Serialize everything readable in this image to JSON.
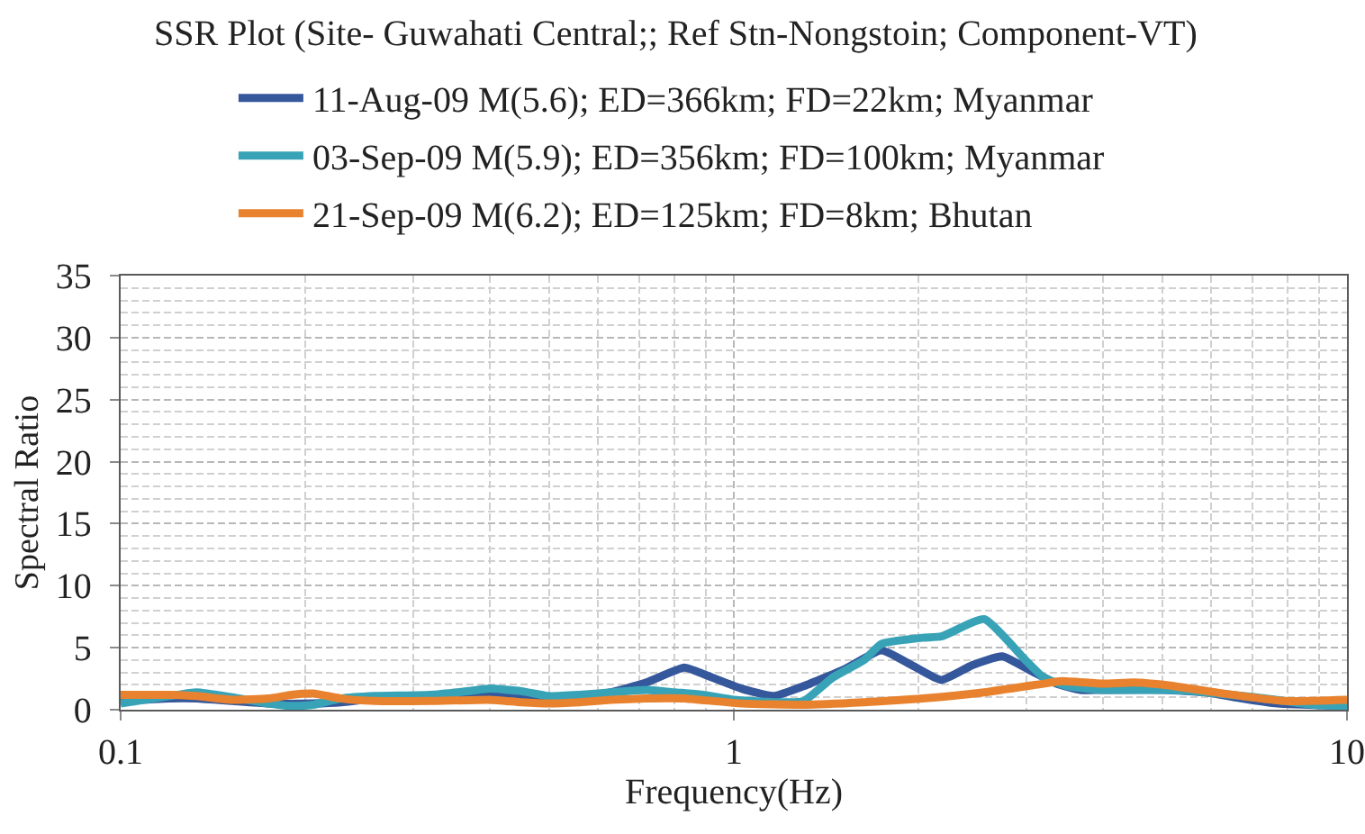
{
  "chart_data": {
    "type": "line",
    "title": "SSR Plot (Site- Guwahati Central;; Ref Stn-Nongstoin; Component-VT)",
    "xlabel": "Frequency(Hz)",
    "ylabel": "Spectral Ratio",
    "log": "x",
    "xlim": [
      0.1,
      10
    ],
    "xticks": [
      0.1,
      1,
      10
    ],
    "ylim": [
      0,
      35
    ],
    "yticks": [
      0,
      5,
      10,
      15,
      20,
      25,
      30,
      35
    ],
    "grid": true,
    "legend": "top",
    "marker": "none",
    "line_style": "solid",
    "series": [
      {
        "name": "11-Aug-09 M(5.6); ED=366km; FD=22km; Myanmar",
        "color": "#35579b",
        "x": [
          0.1,
          0.12,
          0.133,
          0.152,
          0.174,
          0.206,
          0.229,
          0.26,
          0.32,
          0.4,
          0.45,
          0.5,
          0.56,
          0.63,
          0.72,
          0.83,
          0.9,
          1.03,
          1.16,
          1.3,
          1.52,
          1.74,
          1.95,
          2.18,
          2.45,
          2.74,
          3.06,
          3.36,
          3.67,
          4.0,
          5.05,
          5.9,
          6.75,
          7.7,
          10
        ],
        "values": [
          0.7,
          0.9,
          0.9,
          0.7,
          0.5,
          0.5,
          0.6,
          0.9,
          1.0,
          1.2,
          1.0,
          0.9,
          1.0,
          1.4,
          2.2,
          3.4,
          2.8,
          1.7,
          1.1,
          1.9,
          3.3,
          4.8,
          3.6,
          2.4,
          3.6,
          4.3,
          3.1,
          2.1,
          1.6,
          1.6,
          1.6,
          1.4,
          0.9,
          0.5,
          0.3
        ]
      },
      {
        "name": "03-Sep-09 M(5.9); ED=356km; FD=100km; Myanmar",
        "color": "#38a3b7",
        "x": [
          0.1,
          0.12,
          0.133,
          0.152,
          0.174,
          0.19,
          0.206,
          0.229,
          0.26,
          0.32,
          0.37,
          0.4,
          0.45,
          0.5,
          0.56,
          0.63,
          0.72,
          0.8,
          0.89,
          1.0,
          1.16,
          1.3,
          1.45,
          1.63,
          1.74,
          2.03,
          2.18,
          2.56,
          2.99,
          3.2,
          3.5,
          4.0,
          5.05,
          5.6,
          7.1,
          8.85,
          10
        ],
        "values": [
          0.5,
          1.1,
          1.4,
          1.0,
          0.5,
          0.3,
          0.4,
          0.9,
          1.1,
          1.2,
          1.5,
          1.7,
          1.5,
          1.1,
          1.2,
          1.4,
          1.6,
          1.4,
          1.2,
          0.8,
          0.6,
          0.7,
          2.6,
          4.0,
          5.3,
          5.8,
          5.9,
          7.3,
          4.0,
          2.6,
          1.9,
          1.6,
          1.6,
          1.5,
          1.0,
          0.4,
          0.3
        ]
      },
      {
        "name": "21-Sep-09 M(6.2); ED=125km; FD=8km; Bhutan",
        "color": "#e8822e",
        "x": [
          0.1,
          0.12,
          0.133,
          0.152,
          0.174,
          0.19,
          0.206,
          0.229,
          0.26,
          0.32,
          0.4,
          0.45,
          0.5,
          0.56,
          0.63,
          0.72,
          0.83,
          1.03,
          1.3,
          1.63,
          2.03,
          2.56,
          3.2,
          3.42,
          4.0,
          4.49,
          5.05,
          6.3,
          7.9,
          10
        ],
        "values": [
          1.2,
          1.2,
          1.1,
          0.8,
          0.9,
          1.2,
          1.3,
          0.9,
          0.7,
          0.7,
          0.8,
          0.6,
          0.5,
          0.6,
          0.8,
          0.9,
          0.9,
          0.5,
          0.4,
          0.6,
          0.9,
          1.4,
          2.1,
          2.3,
          2.1,
          2.2,
          2.0,
          1.3,
          0.7,
          0.8
        ]
      }
    ]
  }
}
